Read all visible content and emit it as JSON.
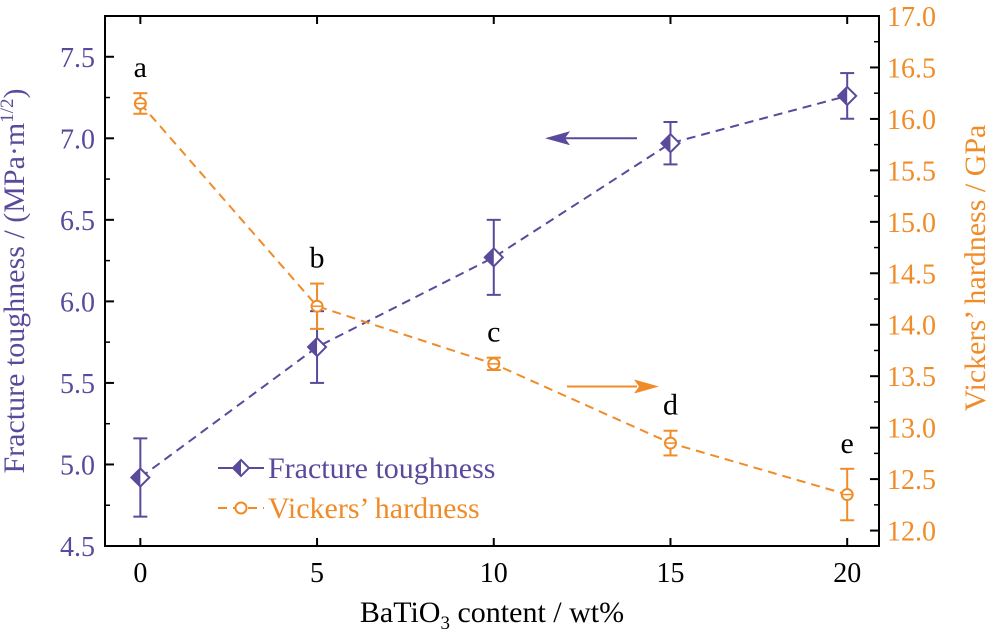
{
  "chart_data": {
    "type": "line",
    "xlabel_prefix": "BaTiO",
    "xlabel_sub": "3",
    "xlabel_suffix": " content / wt%",
    "ylabel_left": "Fracture toughness / (MPa·m",
    "ylabel_left_sup": "1/2",
    "ylabel_left_close": ")",
    "ylabel_right": "Vickers’ hardness / GPa",
    "x_ticks": [
      0,
      5,
      10,
      15,
      20
    ],
    "x_tick_labels": [
      "0",
      "5",
      "10",
      "15",
      "20"
    ],
    "xlim": [
      -1,
      20.9
    ],
    "y_left_ticks": [
      4.5,
      5.0,
      5.5,
      6.0,
      6.5,
      7.0,
      7.5
    ],
    "y_left_tick_labels": [
      "4.5",
      "5.0",
      "5.5",
      "6.0",
      "6.5",
      "7.0",
      "7.5"
    ],
    "ylim_left": [
      4.5,
      7.75
    ],
    "y_right_ticks": [
      12.0,
      12.5,
      13.0,
      13.5,
      14.0,
      14.5,
      15.0,
      15.5,
      16.0,
      16.5,
      17.0
    ],
    "y_right_tick_labels": [
      "12.0",
      "12.5",
      "13.0",
      "13.5",
      "14.0",
      "14.5",
      "15.0",
      "15.5",
      "16.0",
      "16.5",
      "17.0"
    ],
    "ylim_right": [
      11.85,
      17.0
    ],
    "series": [
      {
        "name": "Fracture toughness",
        "axis": "left",
        "color": "#5b4a9b",
        "marker": "diamond",
        "x": [
          0,
          5,
          10,
          15,
          20
        ],
        "y": [
          4.92,
          5.72,
          6.27,
          6.97,
          7.26
        ],
        "err": [
          0.24,
          0.22,
          0.23,
          0.13,
          0.14
        ]
      },
      {
        "name": "Vickers’ hardness",
        "axis": "right",
        "color": "#f08c28",
        "marker": "circle",
        "x": [
          0,
          5,
          10,
          15,
          20
        ],
        "y": [
          16.15,
          14.18,
          13.62,
          12.85,
          12.35
        ],
        "err": [
          0.1,
          0.22,
          0.06,
          0.12,
          0.25
        ]
      }
    ],
    "point_labels": [
      "a",
      "b",
      "c",
      "d",
      "e"
    ],
    "legend_position": "bottom-left"
  }
}
